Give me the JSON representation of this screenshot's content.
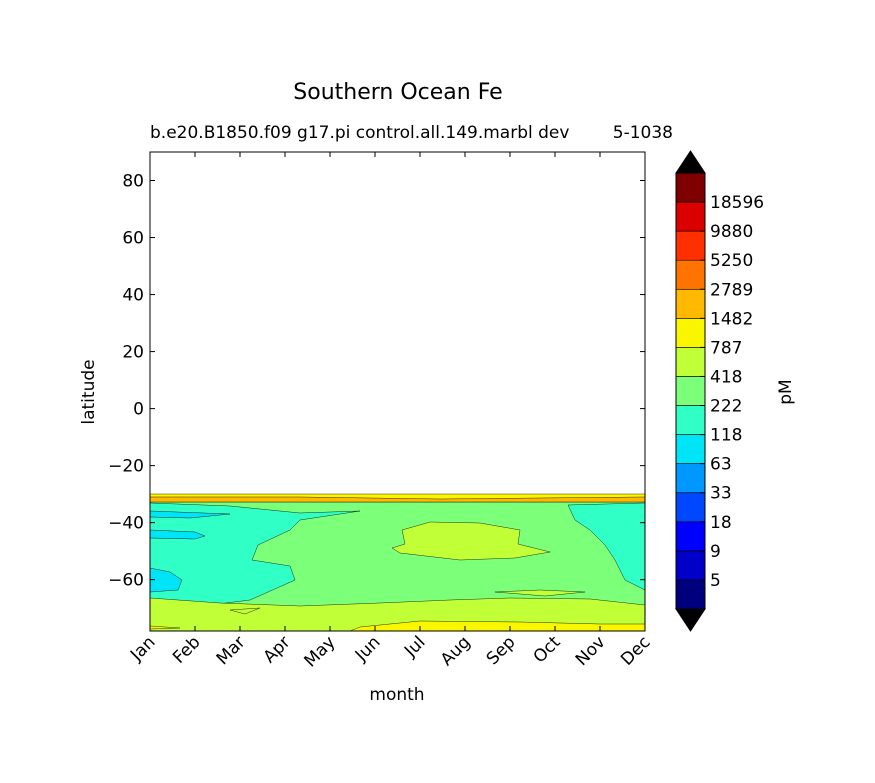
{
  "chart_data": {
    "type": "contour",
    "title": "Southern Ocean Fe",
    "subtitle_left": "b.e20.B1850.f09 g17.pi control.all.149.marbl dev",
    "subtitle_right": "5-1038",
    "xlabel": "month",
    "ylabel": "latitude",
    "x_categories": [
      "Jan",
      "Feb",
      "Mar",
      "Apr",
      "May",
      "Jun",
      "Jul",
      "Aug",
      "Sep",
      "Oct",
      "Nov",
      "Dec"
    ],
    "y_ticks": [
      80,
      60,
      40,
      20,
      0,
      -20,
      -40,
      -60
    ],
    "y_tick_labels": [
      "80",
      "60",
      "40",
      "20",
      "0",
      "−20",
      "−40",
      "−60"
    ],
    "ylim": [
      -78,
      90
    ],
    "colorbar": {
      "label": "pM",
      "tick_labels": [
        "5",
        "9",
        "18",
        "33",
        "63",
        "118",
        "222",
        "418",
        "787",
        "1482",
        "2789",
        "5250",
        "9880",
        "18596"
      ],
      "colors": [
        "#00007f",
        "#0000c8",
        "#0000ff",
        "#0048ff",
        "#0098ff",
        "#00e4f8",
        "#30ffc6",
        "#7cff79",
        "#c1ff36",
        "#f9f600",
        "#ffb900",
        "#ff7300",
        "#ff3000",
        "#da0000",
        "#7f0000"
      ],
      "extend_under_color": "#000000",
      "extend_over_color": "#000000"
    },
    "description_levels": {
      "band_edge_lat": -33,
      "dominant_level": "222-418",
      "deep_south_level": "418-787"
    },
    "fields": [
      {
        "level": 7,
        "lat_top": -34.5,
        "lat_bottom": -78,
        "note": "222-418 background"
      },
      {
        "level": 5,
        "region": "west-cyan",
        "note": "63-118"
      },
      {
        "level": 6,
        "region": "118-222 west and east"
      },
      {
        "level": 8,
        "region": "mid-winter 418-787 blob and south band"
      },
      {
        "level": 9,
        "region": "787-1482 southern edge"
      },
      {
        "level": 10,
        "region": "thin band at ~-33 latitude"
      }
    ]
  }
}
